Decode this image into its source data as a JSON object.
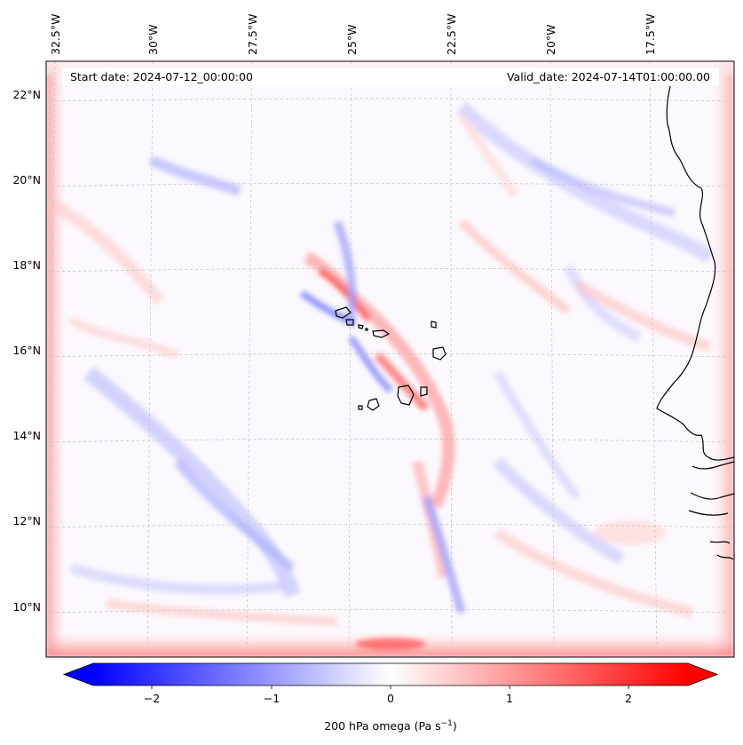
{
  "map": {
    "start_label": "Start date: 2024-07-12_00:00:00",
    "valid_label": "Valid_date: 2024-07-14T01:00:00.00",
    "lon_labels": [
      "32.5°W",
      "30°W",
      "27.5°W",
      "25°W",
      "22.5°W",
      "20°W",
      "17.5°W"
    ],
    "lat_labels": [
      "22°N",
      "20°N",
      "18°N",
      "16°N",
      "14°N",
      "12°N",
      "10°N"
    ],
    "coastline_color": "#000000",
    "gridline_color": "#bfbfbf"
  },
  "colorbar": {
    "label": "200 hPa omega (Pa s",
    "label_sup": "−1",
    "label_end": ")",
    "ticks": [
      "−2",
      "−1",
      "0",
      "1",
      "2"
    ],
    "min": -2.75,
    "max": 2.75,
    "colormap": "bwr",
    "low_color": "#0000ff",
    "mid_color": "#ffffff",
    "high_color": "#ff0000"
  }
}
